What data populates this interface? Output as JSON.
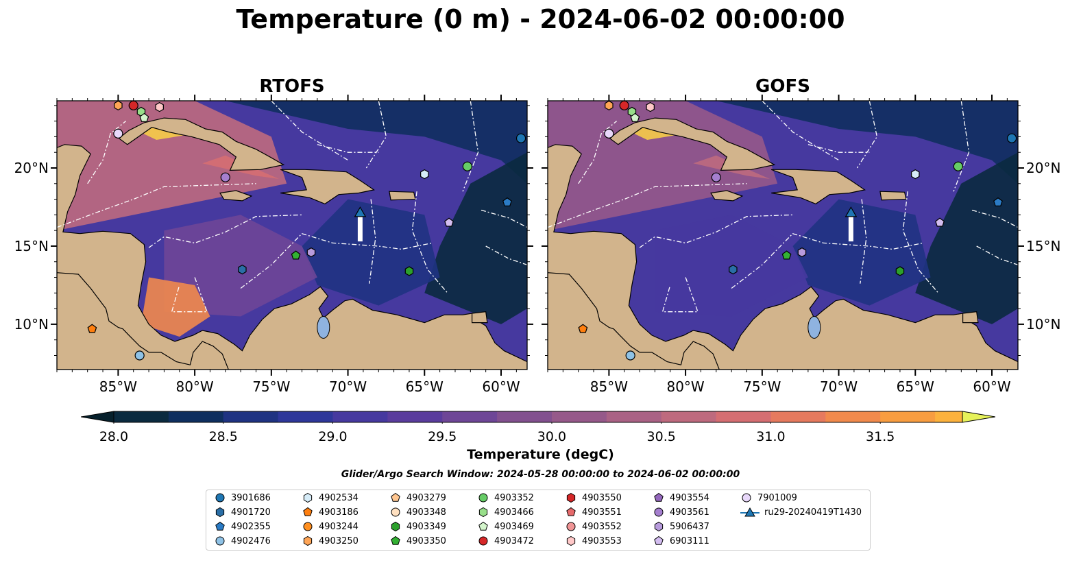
{
  "title": "Temperature (0 m) - 2024-06-02 00:00:00",
  "panels": [
    {
      "title": "RTOFS"
    },
    {
      "title": "GOFS"
    }
  ],
  "axes": {
    "lon_ticks": [
      "85°W",
      "80°W",
      "75°W",
      "70°W",
      "65°W",
      "60°W"
    ],
    "lat_ticks": [
      "20°N",
      "15°N",
      "10°N"
    ],
    "lon_range": [
      -89,
      -58.3
    ],
    "lat_range": [
      7.1,
      24.3
    ],
    "lon_values": [
      -85,
      -80,
      -75,
      -70,
      -65,
      -60
    ],
    "lat_values": [
      20,
      15,
      10
    ]
  },
  "colorbar": {
    "label": "Temperature (degC)",
    "ticks": [
      "28.0",
      "28.5",
      "29.0",
      "29.5",
      "30.0",
      "30.5",
      "31.0",
      "31.5"
    ],
    "tick_values": [
      28.0,
      28.5,
      29.0,
      29.5,
      30.0,
      30.5,
      31.0,
      31.5
    ],
    "range": [
      28.0,
      31.5
    ],
    "step": 0.25,
    "colors": [
      "#0a2a3f",
      "#0f2f5f",
      "#1f3382",
      "#2e379a",
      "#46399f",
      "#5a3c9d",
      "#6e4697",
      "#82508f",
      "#96598a",
      "#aa6285",
      "#be6a7e",
      "#d56e72",
      "#e67a5e",
      "#f18a4c",
      "#f89d40",
      "#fcb23d",
      "#f6cc48"
    ],
    "under_color": "#06202c",
    "over_color": "#e6f25a"
  },
  "search_window": "Glider/Argo Search Window: 2024-05-28 00:00:00 to 2024-06-02 00:00:00",
  "legend": {
    "items": [
      {
        "label": "3901686",
        "marker": "circle",
        "color": "#1f77b4"
      },
      {
        "label": "4901720",
        "marker": "hexagon",
        "color": "#2a6ea6"
      },
      {
        "label": "4902355",
        "marker": "pentagon",
        "color": "#2b7bc5"
      },
      {
        "label": "4902476",
        "marker": "circle",
        "color": "#8fc2e6"
      },
      {
        "label": "4902534",
        "marker": "hexagon",
        "color": "#d6ecf8"
      },
      {
        "label": "4903186",
        "marker": "pentagon",
        "color": "#ff7f0e"
      },
      {
        "label": "4903244",
        "marker": "circle",
        "color": "#ff8f1f"
      },
      {
        "label": "4903250",
        "marker": "hexagon",
        "color": "#ffa556"
      },
      {
        "label": "4903279",
        "marker": "pentagon",
        "color": "#ffc690"
      },
      {
        "label": "4903348",
        "marker": "circle",
        "color": "#ffe0c0"
      },
      {
        "label": "4903349",
        "marker": "hexagon",
        "color": "#2ca02c"
      },
      {
        "label": "4903350",
        "marker": "pentagon",
        "color": "#33b033"
      },
      {
        "label": "4903352",
        "marker": "circle",
        "color": "#66cc66"
      },
      {
        "label": "4903466",
        "marker": "hexagon",
        "color": "#98df8a"
      },
      {
        "label": "4903469",
        "marker": "pentagon",
        "color": "#d4f5cc"
      },
      {
        "label": "4903472",
        "marker": "circle",
        "color": "#d62728"
      },
      {
        "label": "4903550",
        "marker": "hexagon",
        "color": "#d62728"
      },
      {
        "label": "4903551",
        "marker": "pentagon",
        "color": "#e66a6b"
      },
      {
        "label": "4903552",
        "marker": "circle",
        "color": "#f09596"
      },
      {
        "label": "4903553",
        "marker": "hexagon",
        "color": "#ffc8c8"
      },
      {
        "label": "4903554",
        "marker": "pentagon",
        "color": "#9467bd"
      },
      {
        "label": "4903561",
        "marker": "circle",
        "color": "#a57fcf"
      },
      {
        "label": "5906437",
        "marker": "hexagon",
        "color": "#b79bdc"
      },
      {
        "label": "6903111",
        "marker": "pentagon",
        "color": "#d3bdf0"
      },
      {
        "label": "7901009",
        "marker": "circle",
        "color": "#e8d8fa"
      },
      {
        "label": "ru29-20240419T1430",
        "marker": "triangle-line",
        "color": "#1f77b4"
      }
    ]
  },
  "floats": [
    {
      "id": "3901686",
      "lon": -58.7,
      "lat": 21.9
    },
    {
      "id": "4901720",
      "lon": -76.9,
      "lat": 13.5
    },
    {
      "id": "4902355",
      "lon": -59.6,
      "lat": 17.8
    },
    {
      "id": "4902476",
      "lon": -83.6,
      "lat": 8.0
    },
    {
      "id": "4902534",
      "lon": -65.0,
      "lat": 19.6
    },
    {
      "id": "4903186",
      "lon": -86.7,
      "lat": 9.7
    },
    {
      "id": "4903250",
      "lon": -85.0,
      "lat": 24.0
    },
    {
      "id": "4903349",
      "lon": -66.0,
      "lat": 13.4
    },
    {
      "id": "4903350",
      "lon": -73.4,
      "lat": 14.4
    },
    {
      "id": "4903352",
      "lon": -62.2,
      "lat": 20.1
    },
    {
      "id": "4903466",
      "lon": -83.5,
      "lat": 23.6
    },
    {
      "id": "4903469",
      "lon": -83.3,
      "lat": 23.2
    },
    {
      "id": "4903472",
      "lon": -84.0,
      "lat": 24.0
    },
    {
      "id": "4903553",
      "lon": -82.3,
      "lat": 23.9
    },
    {
      "id": "5906437",
      "lon": -72.4,
      "lat": 14.6
    },
    {
      "id": "6903111",
      "lon": -63.4,
      "lat": 16.5
    },
    {
      "id": "7901009",
      "lon": -85.0,
      "lat": 22.2
    },
    {
      "id": "4903561",
      "lon": -78.0,
      "lat": 19.4
    }
  ],
  "glider": {
    "id": "ru29-20240419T1430",
    "track": [
      [
        -69.2,
        15.3
      ],
      [
        -69.2,
        17.0
      ]
    ]
  }
}
